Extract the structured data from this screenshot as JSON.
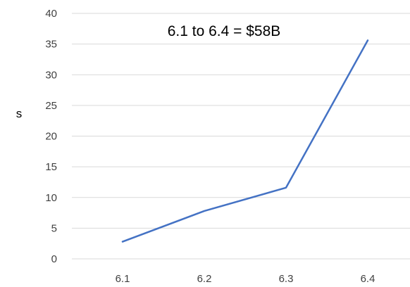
{
  "chart_data": {
    "type": "line",
    "title": "",
    "xlabel": "",
    "ylabel": "s",
    "x": [
      "6.1",
      "6.2",
      "6.3",
      "6.4"
    ],
    "series": [
      {
        "values": [
          2.8,
          7.8,
          11.6,
          35.6
        ],
        "color": "#4472C4"
      }
    ],
    "ylim": [
      0,
      40
    ],
    "yticks": [
      0,
      5,
      10,
      15,
      20,
      25,
      30,
      35,
      40
    ],
    "ytick_labels": [
      "0",
      "5",
      "10",
      "15",
      "20",
      "25",
      "30",
      "35",
      "40"
    ],
    "grid": true,
    "grid_color": "#d9d9d9",
    "annotation": "6.1 to 6.4 = $58B"
  }
}
